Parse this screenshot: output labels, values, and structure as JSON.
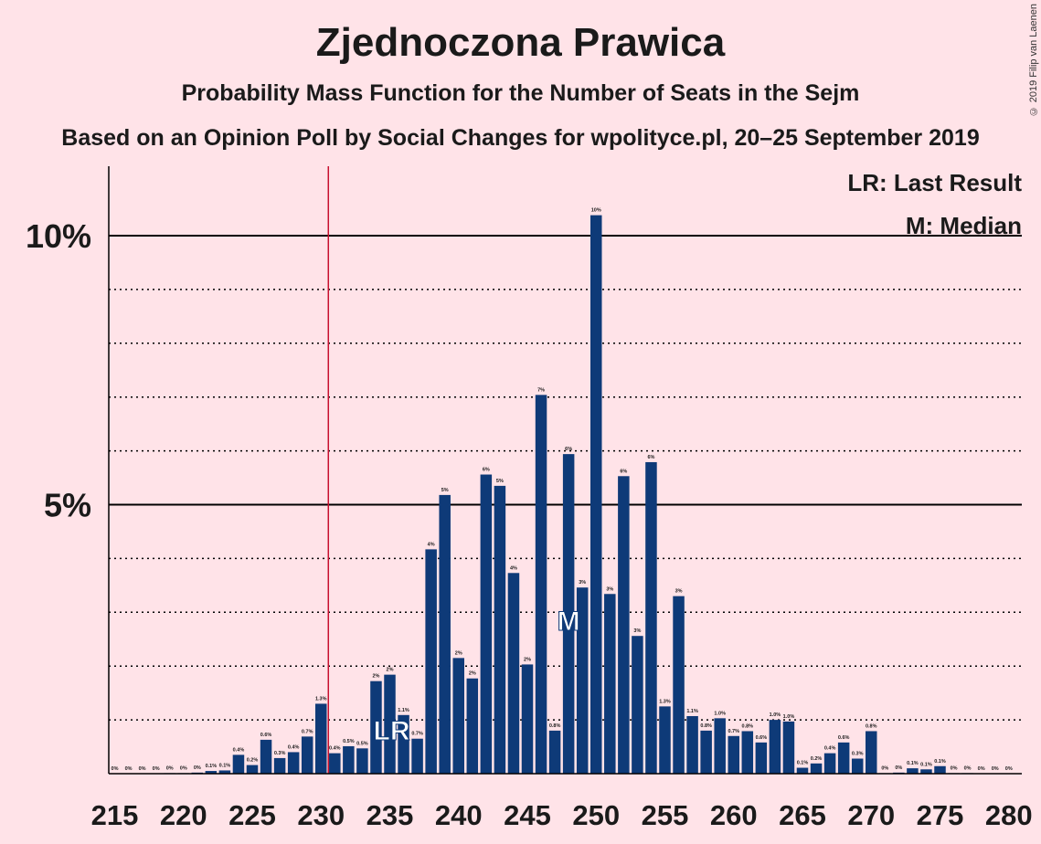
{
  "title": "Zjednoczona Prawica",
  "subtitle": "Probability Mass Function for the Number of Seats in the Sejm",
  "source": "Based on an Opinion Poll by Social Changes for wpolityce.pl, 20–25 September 2019",
  "copyright": "© 2019 Filip van Laenen",
  "legend": {
    "last_result": "LR: Last Result",
    "median": "M: Median"
  },
  "colors": {
    "background": "#FFE3E8",
    "bar": "#0E3A78",
    "last_result_line": "#C8102E",
    "text": "#1a1a1a"
  },
  "chart_data": {
    "type": "bar",
    "title": "Zjednoczona Prawica",
    "xlabel": "",
    "ylabel": "",
    "x": [
      215,
      216,
      217,
      218,
      219,
      220,
      221,
      222,
      223,
      224,
      225,
      226,
      227,
      228,
      229,
      230,
      231,
      232,
      233,
      234,
      235,
      236,
      237,
      238,
      239,
      240,
      241,
      242,
      243,
      244,
      245,
      246,
      247,
      248,
      249,
      250,
      251,
      252,
      253,
      254,
      255,
      256,
      257,
      258,
      259,
      260,
      261,
      262,
      263,
      264,
      265,
      266,
      267,
      268,
      269,
      270,
      271,
      272,
      273,
      274,
      275,
      276,
      277,
      278,
      279,
      280
    ],
    "values": [
      0,
      0,
      0,
      0,
      0.01,
      0.01,
      0.02,
      0.05,
      0.06,
      0.35,
      0.16,
      0.63,
      0.29,
      0.4,
      0.69,
      1.3,
      0.38,
      0.51,
      0.47,
      1.72,
      1.84,
      1.09,
      0.65,
      4.17,
      5.18,
      2.15,
      1.77,
      5.56,
      5.35,
      3.73,
      2.03,
      7.04,
      0.8,
      5.94,
      3.46,
      10.38,
      3.34,
      5.53,
      2.56,
      5.79,
      1.25,
      3.3,
      1.07,
      0.8,
      1.03,
      0.7,
      0.79,
      0.58,
      1.0,
      0.97,
      0.11,
      0.19,
      0.38,
      0.58,
      0.28,
      0.79,
      0.01,
      0.02,
      0.1,
      0.08,
      0.14,
      0.01,
      0.01,
      0,
      0,
      0
    ],
    "labels": [
      "0%",
      "0%",
      "0%",
      "0%",
      "0%",
      "0%",
      "0%",
      "0.1%",
      "0.1%",
      "0.4%",
      "0.2%",
      "0.6%",
      "0.3%",
      "0.4%",
      "0.7%",
      "1.3%",
      "0.4%",
      "0.5%",
      "0.5%",
      "2%",
      "2%",
      "1.1%",
      "0.7%",
      "4%",
      "5%",
      "2%",
      "2%",
      "6%",
      "5%",
      "4%",
      "2%",
      "7%",
      "0.8%",
      "6%",
      "3%",
      "10%",
      "3%",
      "6%",
      "3%",
      "6%",
      "1.3%",
      "3%",
      "1.1%",
      "0.8%",
      "1.0%",
      "0.7%",
      "0.8%",
      "0.6%",
      "1.0%",
      "1.0%",
      "0.1%",
      "0.2%",
      "0.4%",
      "0.6%",
      "0.3%",
      "0.8%",
      "0%",
      "0%",
      "0.1%",
      "0.1%",
      "0.1%",
      "0%",
      "0%",
      "0%",
      "0%",
      "0%"
    ],
    "xticks": [
      215,
      220,
      225,
      230,
      235,
      240,
      245,
      250,
      255,
      260,
      265,
      270,
      275,
      280
    ],
    "yticks": [
      "5%",
      "10%"
    ],
    "ylim": [
      0,
      11.3
    ],
    "last_result": 231,
    "last_result_marker": "LR",
    "last_result_marker_seat": 235,
    "median": 248,
    "median_marker": "M",
    "grid": "dotted every 1%, solid at 5% and 10%"
  }
}
